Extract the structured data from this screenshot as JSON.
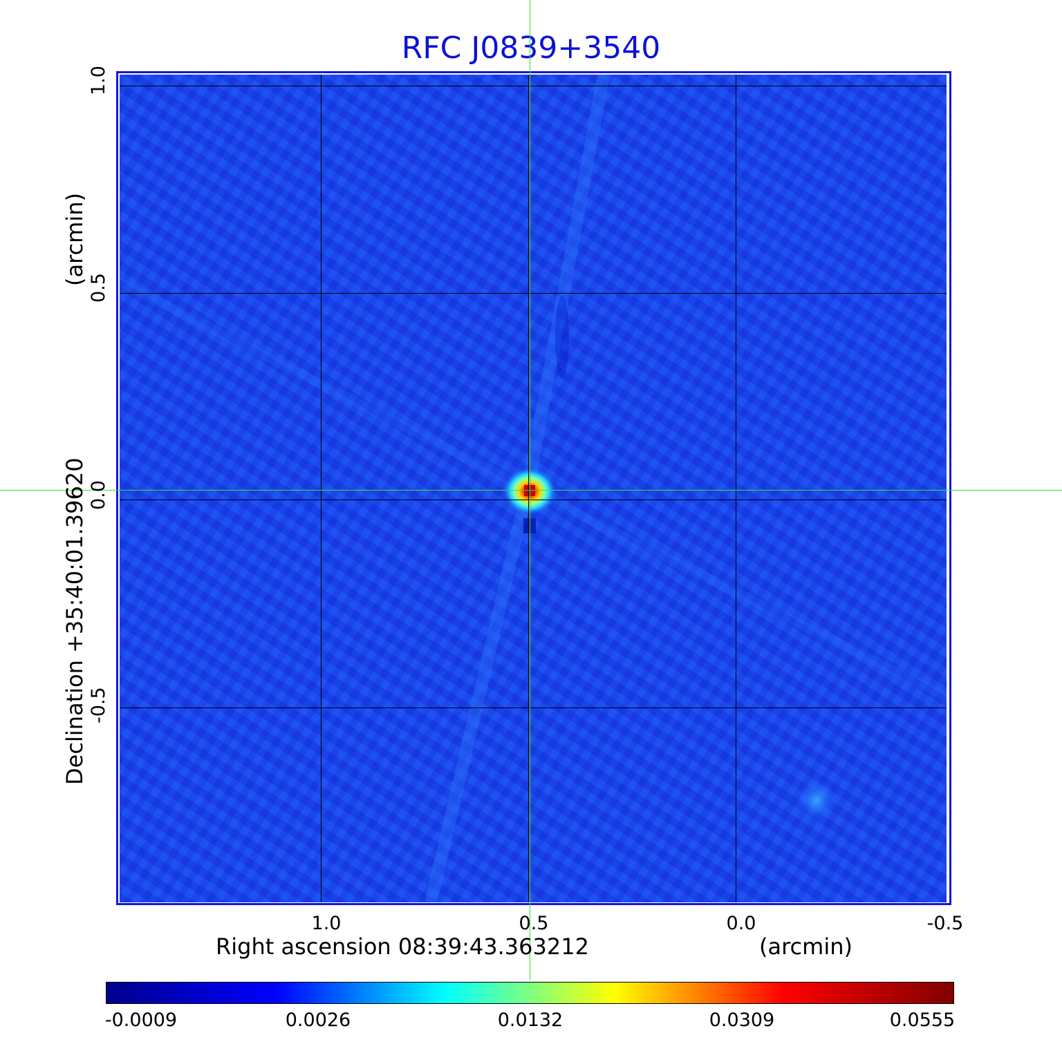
{
  "title": "RFC J0839+3540",
  "x_axis": {
    "label": "Right ascension  08:39:43.363212",
    "unit": "(arcmin)",
    "ticks": [
      "1.0",
      "0.5",
      "0.0",
      "-0.5"
    ]
  },
  "y_axis": {
    "label": "Declination  +35:40:01.39620",
    "unit": "(arcmin)",
    "ticks": [
      "1.0",
      "0.5",
      "0.0",
      "-0.5"
    ]
  },
  "colorbar": {
    "ticks": [
      "-0.0009",
      "0.0026",
      "0.0132",
      "0.0309",
      "0.0555"
    ],
    "colormap": [
      "#00008f",
      "#0000ff",
      "#00ffff",
      "#ffff00",
      "#ff0000",
      "#800000"
    ]
  },
  "image": {
    "background_color": "#1e4bf0",
    "peak_color": "#c80000",
    "crosshair_color": "#2ee52e"
  }
}
